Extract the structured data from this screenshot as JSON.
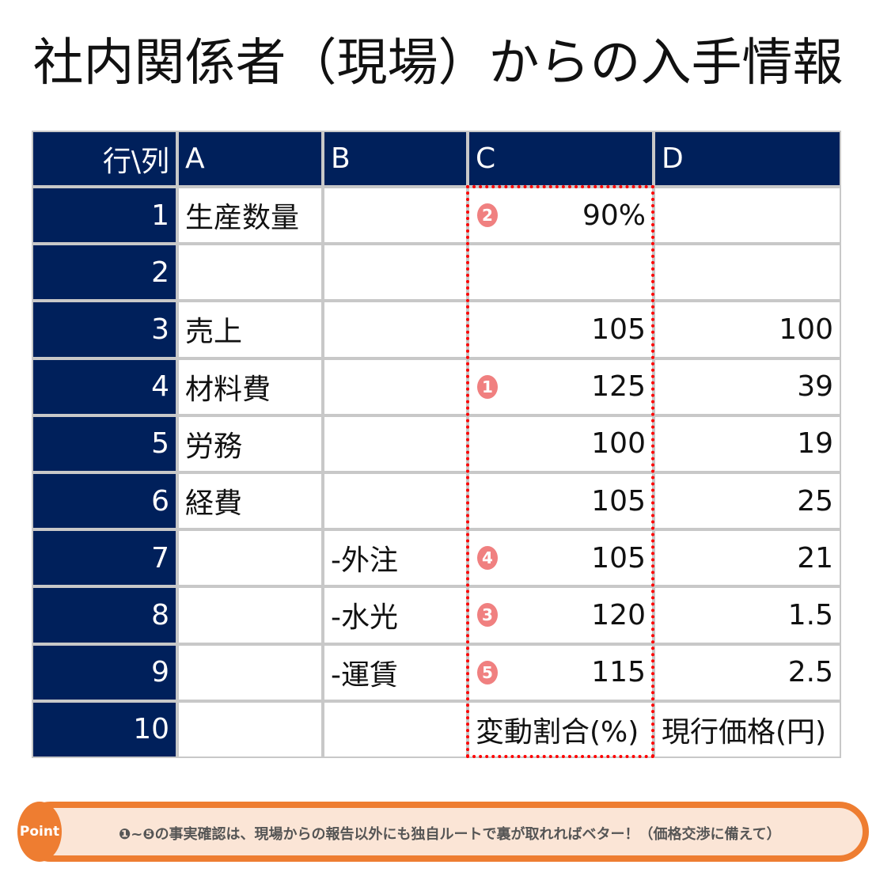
{
  "title": "社内関係者（現場）からの入手情報",
  "table": {
    "headers": [
      "行\\列",
      "A",
      "B",
      "C",
      "D"
    ],
    "rows": [
      {
        "n": "1",
        "a": "生産数量",
        "b": "",
        "c": "90%",
        "d": "",
        "mark": "2"
      },
      {
        "n": "2",
        "a": "",
        "b": "",
        "c": "",
        "d": "",
        "mark": ""
      },
      {
        "n": "3",
        "a": "売上",
        "b": "",
        "c": "105",
        "d": "100",
        "mark": ""
      },
      {
        "n": "4",
        "a": "材料費",
        "b": "",
        "c": "125",
        "d": "39",
        "mark": "1"
      },
      {
        "n": "5",
        "a": "労務",
        "b": "",
        "c": "100",
        "d": "19",
        "mark": ""
      },
      {
        "n": "6",
        "a": "経費",
        "b": "",
        "c": "105",
        "d": "25",
        "mark": ""
      },
      {
        "n": "7",
        "a": "",
        "b": "-外注",
        "c": "105",
        "d": "21",
        "mark": "4"
      },
      {
        "n": "8",
        "a": "",
        "b": "-水光",
        "c": "120",
        "d": "1.5",
        "mark": "3"
      },
      {
        "n": "9",
        "a": "",
        "b": "-運賃",
        "c": "115",
        "d": "2.5",
        "mark": "5"
      },
      {
        "n": "10",
        "a": "",
        "b": "",
        "c": "変動割合(%)",
        "d": "現行価格(円)",
        "mark": ""
      }
    ]
  },
  "point": {
    "badge": "Point",
    "text": "❶~❺の事実確認は、現場からの報告以外にも独自ルートで裏が取れればベター！（価格交渉に備えて）"
  },
  "colors": {
    "header_bg": "#00205b",
    "highlight_border": "#ff0000",
    "marker": "#f08080",
    "point_border": "#ee7d31",
    "point_bg": "#fbe5d6"
  }
}
